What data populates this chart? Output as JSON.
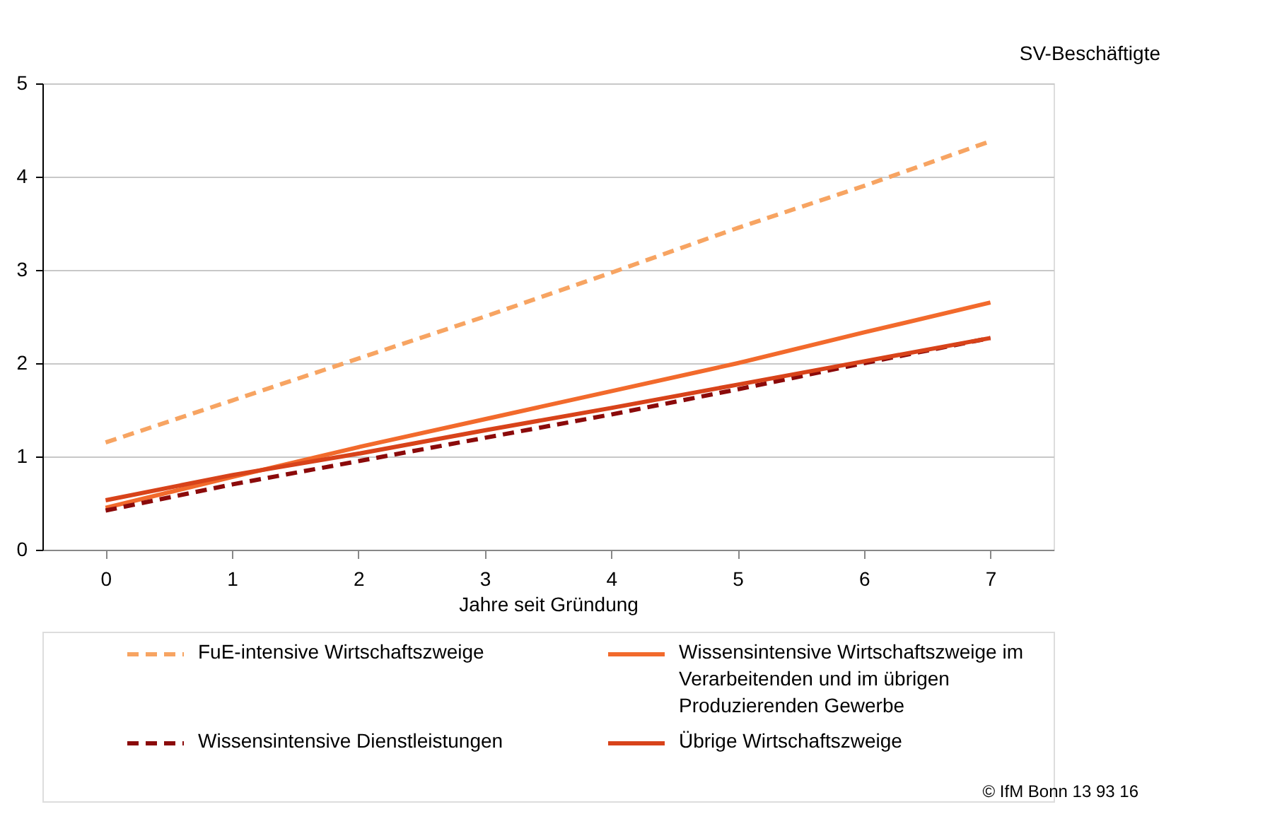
{
  "chart_data": {
    "type": "line",
    "xlabel": "Jahre seit Gründung",
    "ylabel": "SV-Beschäftigte",
    "x": [
      0,
      1,
      2,
      3,
      4,
      5,
      6,
      7
    ],
    "xlim": [
      -0.5,
      7.5
    ],
    "xticks": [
      0,
      1,
      2,
      3,
      4,
      5,
      6,
      7
    ],
    "ylim": [
      0,
      5
    ],
    "yticks": [
      0,
      1,
      2,
      3,
      4,
      5
    ],
    "grid": "y",
    "legend": "bottom",
    "marker": "none",
    "series": [
      {
        "name": "FuE-intensive Wirtschaftszweige",
        "color": "#f7a462",
        "line_style": "dashed",
        "values": [
          1.15,
          1.6,
          2.05,
          2.5,
          2.97,
          3.45,
          3.9,
          4.38
        ]
      },
      {
        "name": "Wissensintensive Wirtschaftszweige im Verarbeitenden und im übrigen Produzierenden Gewerbe",
        "color": "#f26a2c",
        "line_style": "solid",
        "values": [
          0.45,
          0.78,
          1.1,
          1.4,
          1.7,
          2.0,
          2.33,
          2.65
        ]
      },
      {
        "name": "Wissensintensive Dienstleistungen",
        "color": "#8b0a0a",
        "line_style": "dashed",
        "values": [
          0.42,
          0.7,
          0.95,
          1.2,
          1.45,
          1.72,
          2.0,
          2.27
        ]
      },
      {
        "name": "Übrige Wirtschaftszweige",
        "color": "#d8431a",
        "line_style": "solid",
        "values": [
          0.53,
          0.8,
          1.03,
          1.28,
          1.52,
          1.77,
          2.02,
          2.27
        ]
      }
    ],
    "annotations": [
      "© IfM Bonn  13  93  16"
    ]
  }
}
